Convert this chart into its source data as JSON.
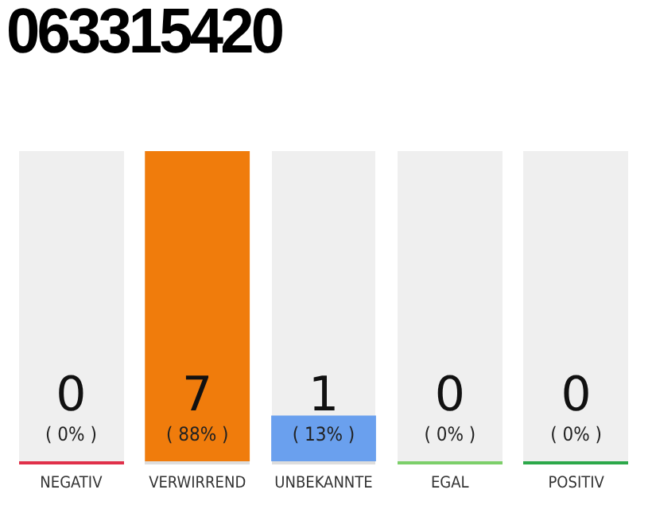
{
  "chart_data": {
    "type": "bar",
    "title": "063315420",
    "categories": [
      "NEGATIV",
      "VERWIRREND",
      "UNBEKANNTE",
      "EGAL",
      "POSITIV"
    ],
    "values": [
      0,
      88,
      13,
      0,
      0
    ],
    "colors": [
      "#e8e8e8",
      "#f07c0c",
      "#6aa0ee",
      "#e8e8e8",
      "#e8e8e8"
    ],
    "value_labels": [
      "( 0% )",
      "( 88% )",
      "( 13% )",
      "( 0% )",
      "( 0% )"
    ],
    "annotations": [
      "0",
      "7",
      "1",
      "0",
      "0"
    ],
    "grid": false,
    "legend": false
  }
}
